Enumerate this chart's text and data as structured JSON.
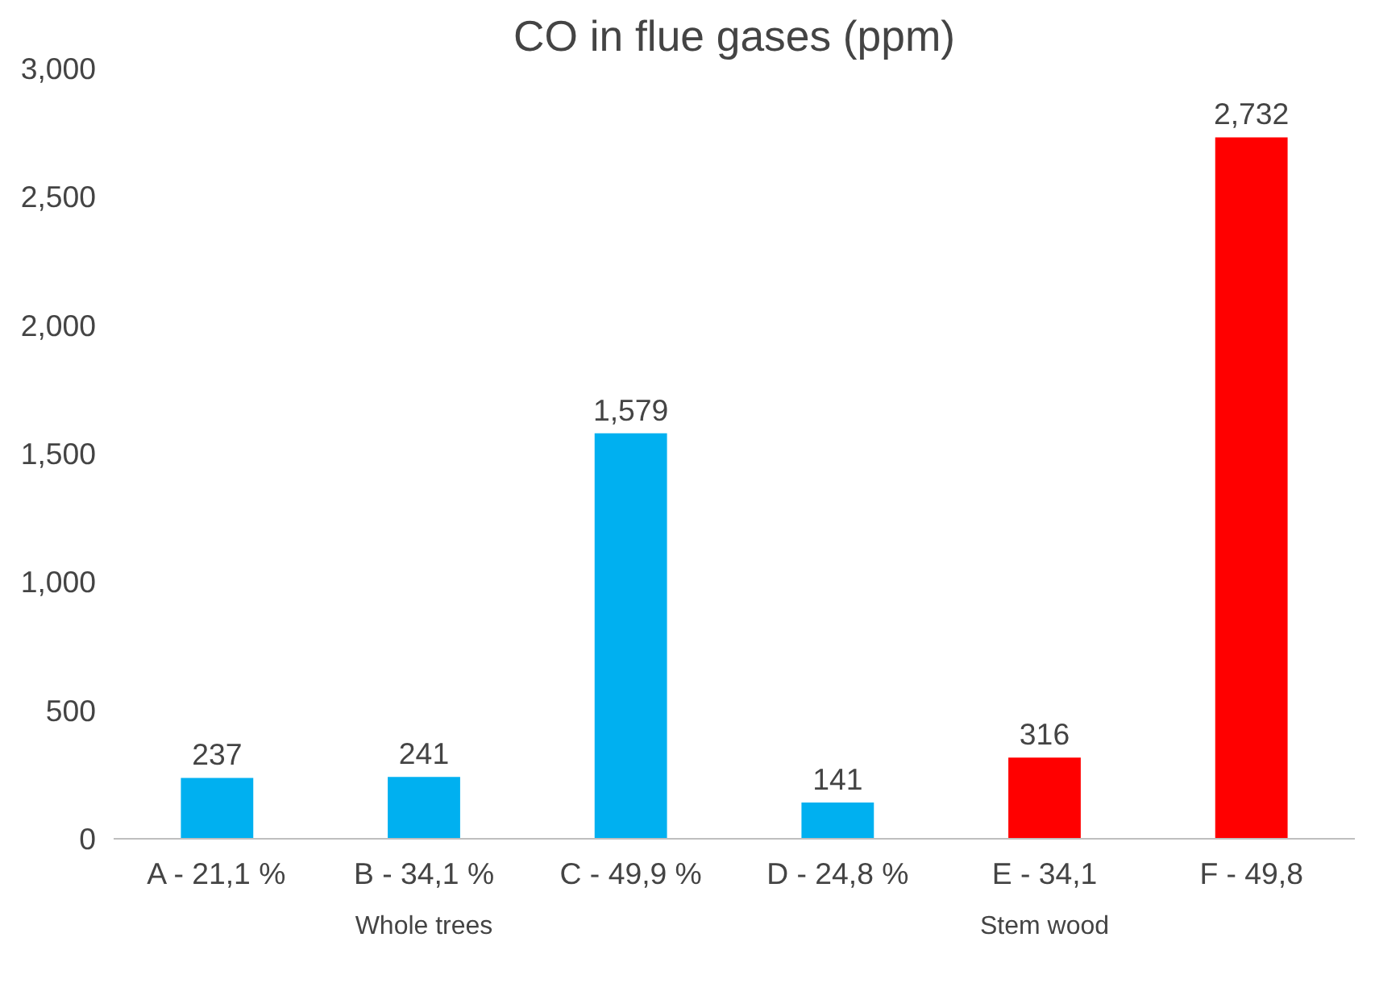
{
  "chart_data": {
    "type": "bar",
    "title": "CO in flue gases (ppm)",
    "categories": [
      "A - 21,1 %",
      "B - 34,1 %",
      "C - 49,9 %",
      "D - 24,8 %",
      "E - 34,1",
      "F - 49,8"
    ],
    "values": [
      237,
      241,
      1579,
      141,
      316,
      2732
    ],
    "colors": [
      "#00b0f0",
      "#00b0f0",
      "#00b0f0",
      "#00b0f0",
      "#ff0000",
      "#ff0000"
    ],
    "value_labels": [
      "237",
      "241",
      "1,579",
      "141",
      "316",
      "2,732"
    ],
    "ylim": [
      0,
      3000
    ],
    "yticks": [
      0,
      500,
      {
        "value": 1000,
        "label": "1,000"
      },
      {
        "value": 1500,
        "label": "1,500"
      },
      {
        "value": 2000,
        "label": "2,000"
      },
      {
        "value": 2500,
        "label": "2,500"
      },
      {
        "value": 3000,
        "label": "3,000"
      }
    ],
    "annotations": [
      "Whole trees",
      "Stem wood"
    ],
    "grid": false
  }
}
